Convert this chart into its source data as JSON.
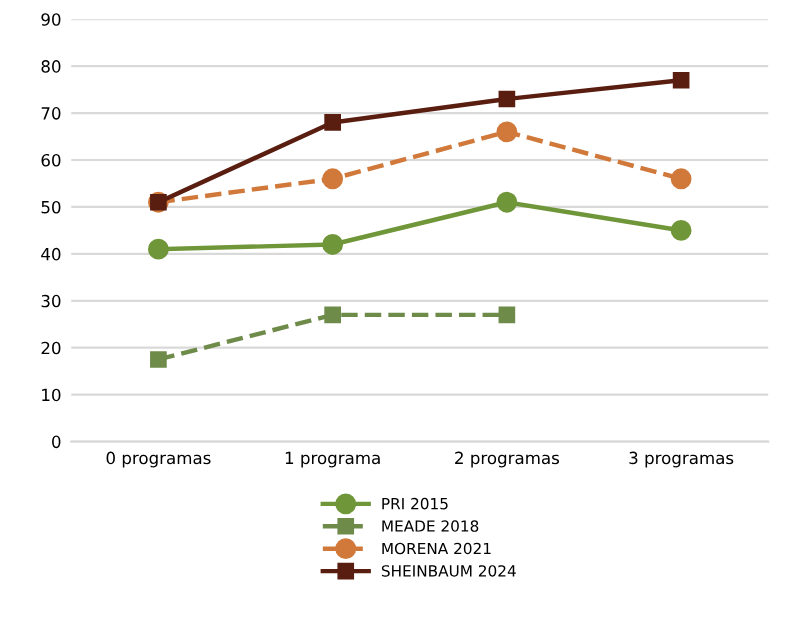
{
  "chart_data": {
    "type": "line",
    "categories": [
      "0 programas",
      "1 programa",
      "2 programas",
      "3 programas"
    ],
    "series": [
      {
        "name": "PRI 2015",
        "color": "#70963a",
        "values": [
          41,
          42,
          51,
          45
        ],
        "marker": "circle",
        "line_style": "solid"
      },
      {
        "name": "MEADE 2018",
        "color": "#6e8b4a",
        "values": [
          17.5,
          27,
          27,
          null
        ],
        "marker": "square",
        "line_style": "dashed"
      },
      {
        "name": "MORENA 2021",
        "color": "#d0793a",
        "values": [
          51,
          56,
          66,
          56
        ],
        "marker": "circle",
        "line_style": "dashed"
      },
      {
        "name": "SHEINBAUM 2024",
        "color": "#5a1e10",
        "values": [
          51,
          68,
          73,
          77
        ],
        "marker": "square",
        "line_style": "solid"
      }
    ],
    "ylim": [
      0,
      90
    ],
    "yticks": [
      0,
      10,
      20,
      30,
      40,
      50,
      60,
      70,
      80,
      90
    ],
    "grid": "y",
    "legend": "bottom"
  }
}
